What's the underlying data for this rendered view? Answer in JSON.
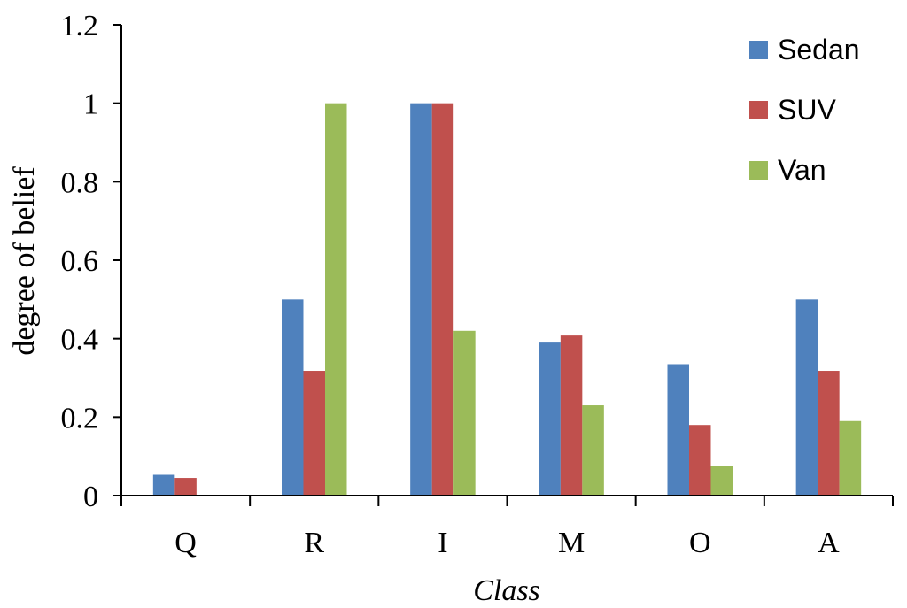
{
  "chart_data": {
    "type": "bar",
    "categories": [
      "Q",
      "R",
      "I",
      "M",
      "O",
      "A"
    ],
    "series": [
      {
        "name": "Sedan",
        "color": "#4F81BD",
        "values": [
          0.053,
          0.5,
          1.0,
          0.39,
          0.335,
          0.5
        ]
      },
      {
        "name": "SUV",
        "color": "#C0504D",
        "values": [
          0.045,
          0.318,
          1.0,
          0.408,
          0.18,
          0.318
        ]
      },
      {
        "name": "Van",
        "color": "#9BBB59",
        "values": [
          0,
          1.0,
          0.42,
          0.23,
          0.075,
          0.19
        ]
      }
    ],
    "xlabel": "Class",
    "ylabel": "degree of belief",
    "ylim": [
      0,
      1.2
    ],
    "yticks": [
      "0",
      "0.2",
      "0.4",
      "0.6",
      "0.8",
      "1",
      "1.2"
    ],
    "grid": false,
    "legend_position": "top-right"
  }
}
